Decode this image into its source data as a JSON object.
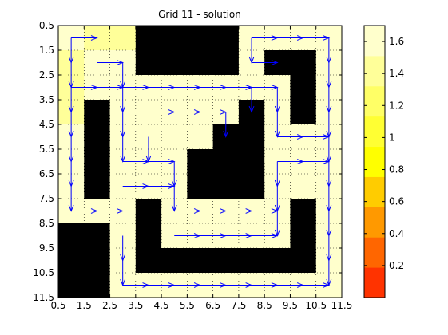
{
  "chart_data": {
    "type": "heatmap",
    "title": "Grid 11 - solution",
    "xlabel": "",
    "ylabel": "",
    "xlim": [
      0.5,
      11.5
    ],
    "ylim": [
      0.5,
      11.5
    ],
    "y_reversed": true,
    "grid": "dotted",
    "xticks": [
      "0.5",
      "1.5",
      "2.5",
      "3.5",
      "4.5",
      "5.5",
      "6.5",
      "7.5",
      "8.5",
      "9.5",
      "10.5",
      "11.5"
    ],
    "yticks": [
      "0.5",
      "1.5",
      "2.5",
      "3.5",
      "4.5",
      "5.5",
      "6.5",
      "7.5",
      "8.5",
      "9.5",
      "10.5",
      "11.5"
    ],
    "values": [
      [
        1.55,
        1.45,
        1.45,
        null,
        null,
        null,
        null,
        1.6,
        1.6,
        1.6,
        1.6
      ],
      [
        1.35,
        1.6,
        1.6,
        null,
        null,
        null,
        null,
        1.6,
        null,
        null,
        1.6
      ],
      [
        1.35,
        1.6,
        1.6,
        1.6,
        1.6,
        1.6,
        1.6,
        1.6,
        1.6,
        null,
        1.6
      ],
      [
        1.45,
        null,
        1.6,
        1.6,
        1.6,
        1.6,
        1.6,
        null,
        1.6,
        null,
        1.6
      ],
      [
        1.55,
        null,
        1.6,
        1.6,
        1.6,
        1.6,
        null,
        null,
        1.6,
        1.6,
        1.6
      ],
      [
        1.6,
        null,
        1.6,
        1.6,
        1.6,
        null,
        null,
        null,
        1.6,
        1.6,
        1.6
      ],
      [
        1.6,
        null,
        1.6,
        1.6,
        1.6,
        null,
        null,
        null,
        1.6,
        1.6,
        1.6
      ],
      [
        1.6,
        1.6,
        1.6,
        null,
        1.6,
        1.6,
        1.6,
        1.6,
        1.6,
        null,
        1.6
      ],
      [
        null,
        null,
        1.6,
        null,
        1.6,
        1.6,
        1.6,
        1.6,
        1.6,
        null,
        1.6
      ],
      [
        null,
        null,
        1.6,
        null,
        null,
        null,
        null,
        null,
        null,
        null,
        1.6
      ],
      [
        null,
        null,
        1.6,
        1.6,
        1.6,
        1.6,
        1.6,
        1.6,
        1.6,
        1.6,
        1.7
      ]
    ],
    "wall_color": "#000000",
    "colormap": [
      "#ff3300",
      "#ff6600",
      "#ff9900",
      "#ffcc00",
      "#ffff00",
      "#ffff33",
      "#ffff66",
      "#ffff99",
      "#ffffcc"
    ],
    "colorbar": {
      "min": 0,
      "max": 1.7,
      "ticks": [
        "0.2",
        "0.4",
        "0.6",
        "0.8",
        "1",
        "1.2",
        "1.4",
        "1.6"
      ]
    },
    "arrow_color": "#0000ff",
    "arrows": [
      [
        1,
        1,
        2,
        1
      ],
      [
        1,
        1,
        1,
        2
      ],
      [
        2,
        2,
        3,
        2
      ],
      [
        3,
        2,
        3,
        3
      ],
      [
        1,
        2,
        1,
        3
      ],
      [
        1,
        3,
        2,
        3
      ],
      [
        2,
        3,
        3,
        3
      ],
      [
        3,
        3,
        4,
        3
      ],
      [
        4,
        3,
        5,
        3
      ],
      [
        5,
        3,
        6,
        3
      ],
      [
        6,
        3,
        7,
        3
      ],
      [
        7,
        3,
        8,
        3
      ],
      [
        8,
        3,
        9,
        3
      ],
      [
        8,
        1,
        9,
        1
      ],
      [
        9,
        1,
        10,
        1
      ],
      [
        10,
        1,
        11,
        1
      ],
      [
        8,
        1,
        8,
        2
      ],
      [
        8,
        2,
        9,
        2
      ],
      [
        11,
        1,
        11,
        2
      ],
      [
        11,
        2,
        11,
        3
      ],
      [
        11,
        3,
        11,
        4
      ],
      [
        11,
        4,
        11,
        5
      ],
      [
        11,
        5,
        11,
        6
      ],
      [
        11,
        6,
        11,
        7
      ],
      [
        11,
        7,
        11,
        8
      ],
      [
        11,
        8,
        11,
        9
      ],
      [
        11,
        9,
        11,
        10
      ],
      [
        11,
        10,
        11,
        11
      ],
      [
        1,
        3,
        1,
        4
      ],
      [
        1,
        4,
        1,
        5
      ],
      [
        1,
        5,
        1,
        6
      ],
      [
        1,
        6,
        1,
        7
      ],
      [
        1,
        7,
        1,
        8
      ],
      [
        1,
        8,
        2,
        8
      ],
      [
        2,
        8,
        3,
        8
      ],
      [
        3,
        3,
        3,
        4
      ],
      [
        3,
        4,
        3,
        5
      ],
      [
        3,
        5,
        3,
        6
      ],
      [
        3,
        6,
        4,
        6
      ],
      [
        4,
        6,
        5,
        6
      ],
      [
        5,
        6,
        5,
        7
      ],
      [
        5,
        7,
        5,
        8
      ],
      [
        5,
        8,
        6,
        8
      ],
      [
        4,
        4,
        5,
        4
      ],
      [
        5,
        4,
        6,
        4
      ],
      [
        6,
        4,
        7,
        4
      ],
      [
        7,
        4,
        7,
        5
      ],
      [
        7,
        3,
        8,
        3
      ],
      [
        8,
        3,
        8,
        4
      ],
      [
        4,
        5,
        4,
        6
      ],
      [
        3,
        7,
        4,
        7
      ],
      [
        4,
        7,
        5,
        7
      ],
      [
        9,
        3,
        9,
        4
      ],
      [
        9,
        4,
        9,
        5
      ],
      [
        9,
        5,
        10,
        5
      ],
      [
        10,
        5,
        11,
        5
      ],
      [
        9,
        6,
        10,
        6
      ],
      [
        10,
        6,
        11,
        6
      ],
      [
        9,
        6,
        9,
        7
      ],
      [
        9,
        7,
        9,
        8
      ],
      [
        9,
        8,
        9,
        9
      ],
      [
        6,
        8,
        7,
        8
      ],
      [
        7,
        8,
        8,
        8
      ],
      [
        8,
        8,
        9,
        8
      ],
      [
        5,
        9,
        6,
        9
      ],
      [
        6,
        9,
        7,
        9
      ],
      [
        7,
        9,
        8,
        9
      ],
      [
        8,
        9,
        9,
        9
      ],
      [
        3,
        9,
        3,
        10
      ],
      [
        3,
        10,
        3,
        11
      ],
      [
        3,
        11,
        4,
        11
      ],
      [
        4,
        11,
        5,
        11
      ],
      [
        5,
        11,
        6,
        11
      ],
      [
        6,
        11,
        7,
        11
      ],
      [
        7,
        11,
        8,
        11
      ],
      [
        8,
        11,
        9,
        11
      ],
      [
        9,
        11,
        10,
        11
      ],
      [
        10,
        11,
        11,
        11
      ]
    ]
  }
}
